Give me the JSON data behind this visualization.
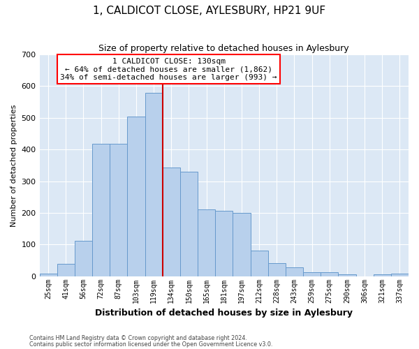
{
  "title": "1, CALDICOT CLOSE, AYLESBURY, HP21 9UF",
  "subtitle": "Size of property relative to detached houses in Aylesbury",
  "xlabel": "Distribution of detached houses by size in Aylesbury",
  "ylabel": "Number of detached properties",
  "categories": [
    "25sqm",
    "41sqm",
    "56sqm",
    "72sqm",
    "87sqm",
    "103sqm",
    "119sqm",
    "134sqm",
    "150sqm",
    "165sqm",
    "181sqm",
    "197sqm",
    "212sqm",
    "228sqm",
    "243sqm",
    "259sqm",
    "275sqm",
    "290sqm",
    "306sqm",
    "321sqm",
    "337sqm"
  ],
  "values": [
    8,
    38,
    112,
    417,
    417,
    505,
    578,
    343,
    330,
    210,
    207,
    200,
    80,
    42,
    27,
    13,
    13,
    6,
    0,
    5,
    8
  ],
  "bar_color": "#b8d0ec",
  "bar_edge_color": "#6699cc",
  "vline_index": 7,
  "property_line_label": "1 CALDICOT CLOSE: 130sqm",
  "annotation_line1": "← 64% of detached houses are smaller (1,862)",
  "annotation_line2": "34% of semi-detached houses are larger (993) →",
  "vline_color": "#cc0000",
  "fig_bg_color": "#ffffff",
  "ax_bg_color": "#dce8f5",
  "grid_color": "#ffffff",
  "footer1": "Contains HM Land Registry data © Crown copyright and database right 2024.",
  "footer2": "Contains public sector information licensed under the Open Government Licence v3.0.",
  "ylim": [
    0,
    700
  ],
  "yticks": [
    0,
    100,
    200,
    300,
    400,
    500,
    600,
    700
  ]
}
